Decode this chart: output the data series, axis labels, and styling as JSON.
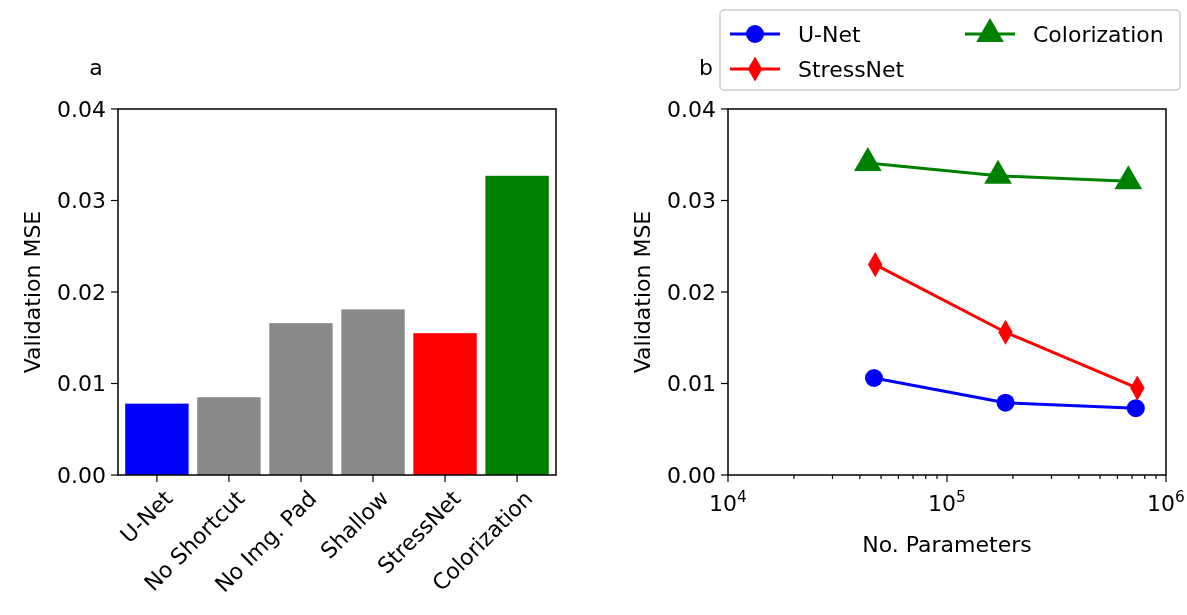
{
  "chart_data": [
    {
      "type": "bar",
      "title": "a",
      "ylabel": "Validation MSE",
      "categories": [
        "U-Net",
        "No Shortcut",
        "No Img. Pad",
        "Shallow",
        "StressNet",
        "Colorization"
      ],
      "values": [
        0.0078,
        0.0085,
        0.0166,
        0.0181,
        0.0155,
        0.0327
      ],
      "colors": [
        "#0000ff",
        "#898989",
        "#898989",
        "#898989",
        "#ff0000",
        "#008000"
      ],
      "ylim": [
        0,
        0.04
      ],
      "yticks": [
        {
          "value": 0,
          "label": "0.00"
        },
        0.01,
        0.02,
        0.03,
        0.04
      ],
      "grid": false
    },
    {
      "type": "line",
      "title": "b",
      "xlabel": "No. Parameters",
      "ylabel": "Validation MSE",
      "log": "x",
      "legend": "top",
      "xlim": [
        10000,
        1000000
      ],
      "xticks": [
        {
          "value": 10000,
          "label": "10$^{4}$"
        },
        {
          "value": 20000,
          "label": null
        },
        {
          "value": 30000,
          "label": null
        },
        {
          "value": 40000,
          "label": null
        },
        {
          "value": 50000,
          "label": null
        },
        {
          "value": 60000,
          "label": null
        },
        {
          "value": 70000,
          "label": null
        },
        {
          "value": 80000,
          "label": null
        },
        {
          "value": 90000,
          "label": null
        },
        {
          "value": 100000,
          "label": "10$^{5}$"
        },
        {
          "value": 200000,
          "label": null
        },
        {
          "value": 300000,
          "label": null
        },
        {
          "value": 400000,
          "label": null
        },
        {
          "value": 500000,
          "label": null
        },
        {
          "value": 600000,
          "label": null
        },
        {
          "value": 700000,
          "label": null
        },
        {
          "value": 800000,
          "label": null
        },
        {
          "value": 900000,
          "label": null
        },
        {
          "value": 1000000,
          "label": "10$^{6}$"
        }
      ],
      "ylim": [
        0,
        0.04
      ],
      "yticks": [
        {
          "value": 0,
          "label": "0.00"
        },
        0.01,
        0.02,
        0.03,
        0.04
      ],
      "grid": false,
      "series": [
        {
          "name": "U-Net",
          "color": "#0000ff",
          "marker": "circle",
          "x": [
            46400,
            185000,
            728000
          ],
          "values": [
            0.0106,
            0.0079,
            0.0073
          ]
        },
        {
          "name": "StressNet",
          "color": "#ff0000",
          "marker": "diamond",
          "x": [
            47000,
            185000,
            740000
          ],
          "values": [
            0.023,
            0.0156,
            0.0095
          ]
        },
        {
          "name": "Colorization",
          "color": "#008000",
          "marker": "triangle",
          "x": [
            43500,
            171000,
            673000
          ],
          "values": [
            0.0341,
            0.0327,
            0.0321
          ]
        }
      ]
    }
  ]
}
